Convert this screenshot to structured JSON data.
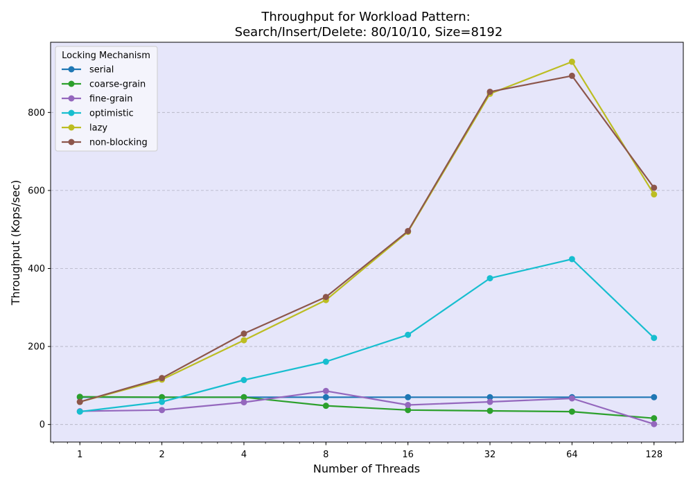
{
  "chart_data": {
    "type": "line",
    "title_line1": "Throughput for Workload Pattern:",
    "title_line2": "Search/Insert/Delete: 80/10/10, Size=8192",
    "xlabel": "Number of Threads",
    "ylabel": "Throughput (Kops/sec)",
    "x_scale": "log2",
    "x": [
      1,
      2,
      4,
      8,
      16,
      32,
      64,
      128
    ],
    "x_tick_labels": [
      "1",
      "2",
      "4",
      "8",
      "16",
      "32",
      "64",
      "128"
    ],
    "ylim": [
      -45,
      980
    ],
    "y_ticks": [
      0,
      200,
      400,
      600,
      800
    ],
    "grid": "horizontal dashed",
    "background": "#e6e6fa",
    "legend": {
      "title": "Locking Mechanism",
      "placement": "top-left"
    },
    "series": [
      {
        "name": "serial",
        "color": "#1f77b4",
        "values": [
          70,
          70,
          70,
          70,
          70,
          70,
          70,
          70
        ]
      },
      {
        "name": "coarse-grain",
        "color": "#2ca02c",
        "values": [
          71,
          70,
          70,
          48,
          37,
          35,
          33,
          16
        ]
      },
      {
        "name": "fine-grain",
        "color": "#9467bd",
        "values": [
          34,
          37,
          57,
          86,
          50,
          58,
          67,
          1
        ]
      },
      {
        "name": "optimistic",
        "color": "#17becf",
        "values": [
          33,
          58,
          114,
          161,
          230,
          375,
          424,
          222
        ]
      },
      {
        "name": "lazy",
        "color": "#bcbd22",
        "values": [
          58,
          115,
          216,
          319,
          494,
          848,
          930,
          590
        ]
      },
      {
        "name": "non-blocking",
        "color": "#8c564b",
        "values": [
          58,
          119,
          233,
          327,
          496,
          853,
          894,
          607
        ]
      }
    ]
  }
}
